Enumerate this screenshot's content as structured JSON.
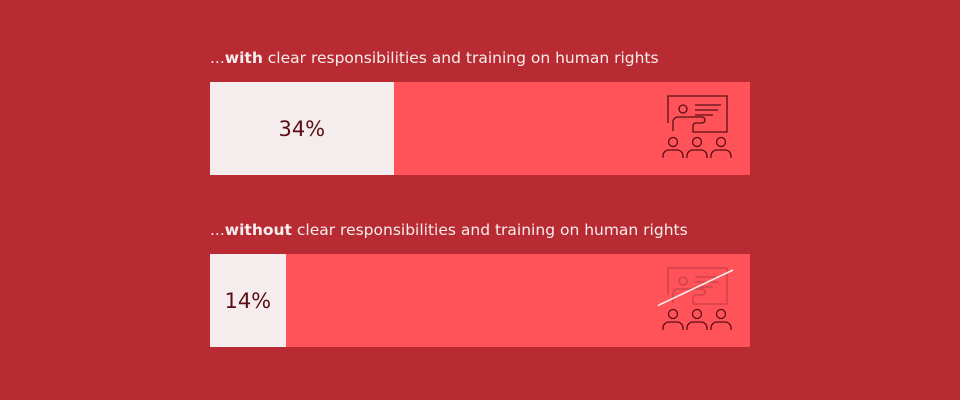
{
  "chart_data": {
    "type": "bar",
    "orientation": "horizontal",
    "xlim": [
      0,
      100
    ],
    "categories": [
      {
        "prefix": "...",
        "bold": "with",
        "rest": " clear responsibilities and training on human rights"
      },
      {
        "prefix": "...",
        "bold": "without",
        "rest": " clear responsibilities and training on human rights"
      }
    ],
    "values": [
      34,
      14
    ],
    "value_labels": [
      "34%",
      "14%"
    ],
    "icons": [
      "training-presentation-icon",
      "no-training-presentation-icon"
    ]
  },
  "colors": {
    "background": "#b92b32",
    "track": "#ff5259",
    "fill": "#f5eded",
    "value_text": "#5a0e14",
    "label_text": "#f5eded"
  }
}
